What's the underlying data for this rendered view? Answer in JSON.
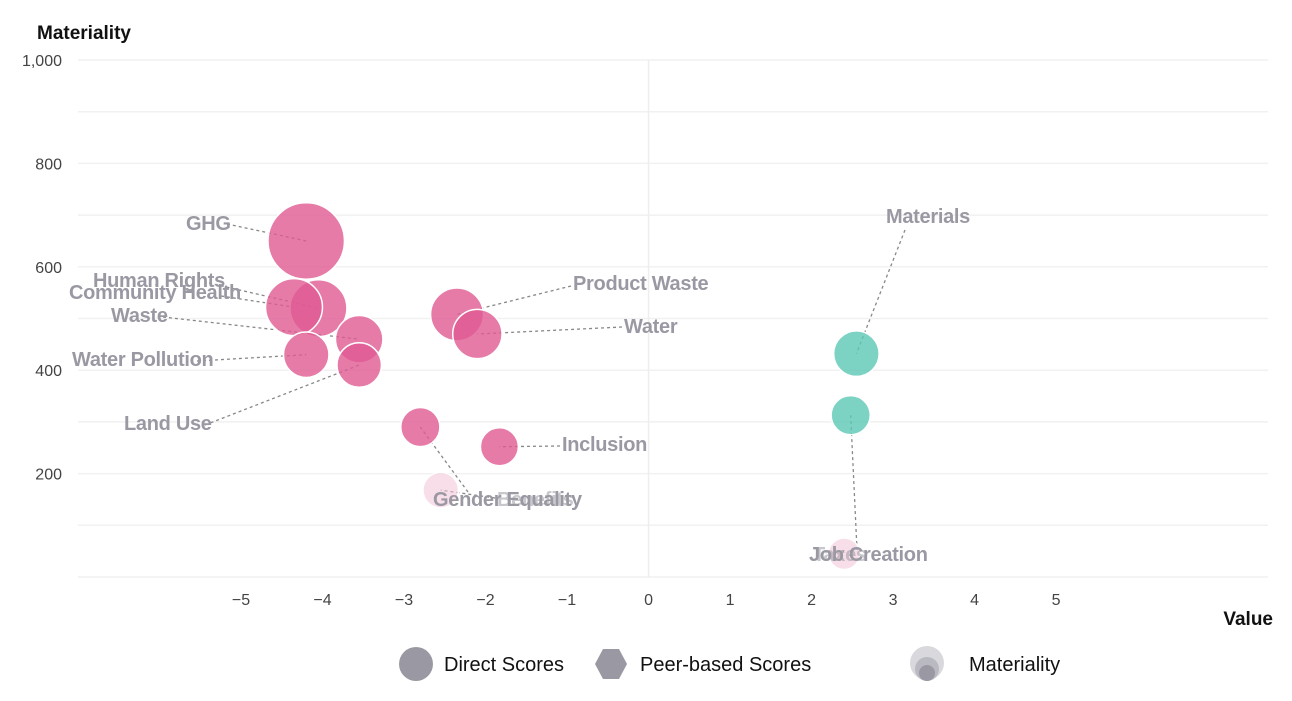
{
  "chart_data": {
    "type": "scatter",
    "title": "",
    "xlabel": "Value",
    "ylabel": "Materiality",
    "xlim": [
      -7,
      7.6
    ],
    "ylim": [
      0,
      1000
    ],
    "x_ticks": [
      -5,
      -4,
      -3,
      -2,
      -1,
      0,
      1,
      2,
      3,
      4,
      5
    ],
    "y_ticks": [
      200,
      400,
      600,
      800,
      1000
    ],
    "grid": true,
    "colors": {
      "negative": "#e05a92",
      "positive": "#5cc8b4",
      "faded": "#f2c3d6",
      "label": "#9a99a3"
    },
    "points": [
      {
        "label": "GHG",
        "x": -4.2,
        "y": 650,
        "size": 650,
        "color": "negative"
      },
      {
        "label": "Human Rights",
        "x": -4.05,
        "y": 520,
        "size": 360,
        "color": "negative"
      },
      {
        "label": "Community Health",
        "x": -4.35,
        "y": 522,
        "size": 360,
        "color": "negative"
      },
      {
        "label": "Waste",
        "x": -3.55,
        "y": 460,
        "size": 250,
        "color": "negative"
      },
      {
        "label": "Water Pollution",
        "x": -4.2,
        "y": 430,
        "size": 230,
        "color": "negative"
      },
      {
        "label": "Land Use",
        "x": -3.55,
        "y": 410,
        "size": 220,
        "color": "negative"
      },
      {
        "label": "Product Waste",
        "x": -2.35,
        "y": 508,
        "size": 310,
        "color": "negative"
      },
      {
        "label": "Water",
        "x": -2.1,
        "y": 470,
        "size": 270,
        "color": "negative"
      },
      {
        "label": "Gender Equality",
        "x": -2.8,
        "y": 290,
        "size": 170,
        "color": "negative"
      },
      {
        "label": "Inclusion",
        "x": -1.83,
        "y": 252,
        "size": 160,
        "color": "negative"
      },
      {
        "label": "Benefits",
        "x": -2.55,
        "y": 168,
        "size": 140,
        "color": "faded"
      },
      {
        "label": "Materials",
        "x": 2.55,
        "y": 432,
        "size": 230,
        "color": "positive"
      },
      {
        "label": "Job Creation",
        "x": 2.48,
        "y": 313,
        "size": 170,
        "color": "positive"
      },
      {
        "label": "Taxes",
        "x": 2.4,
        "y": 45,
        "size": 110,
        "color": "faded"
      }
    ],
    "legend": [
      {
        "label": "Direct Scores",
        "shape": "circle"
      },
      {
        "label": "Peer-based Scores",
        "shape": "hexagon"
      },
      {
        "label": "Materiality",
        "shape": "nested-circles"
      }
    ],
    "legend_placement": "bottom"
  }
}
